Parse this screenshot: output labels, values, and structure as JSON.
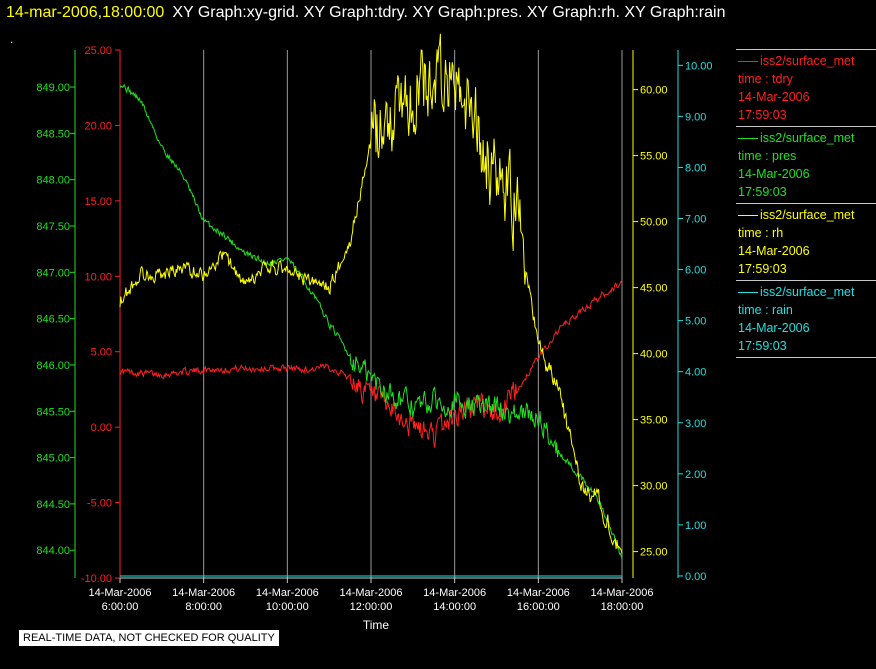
{
  "header": {
    "timestamp": "14-mar-2006,18:00:00",
    "title": "XY Graph:xy-grid.  XY Graph:tdry.  XY Graph:pres.  XY Graph:rh.  XY Graph:rain",
    "second_line": "."
  },
  "notice": "REAL-TIME DATA, NOT CHECKED FOR QUALITY",
  "legend": [
    {
      "source": "iss2/surface_met",
      "var": "time : tdry",
      "date": "14-Mar-2006",
      "time": "17:59:03",
      "color": "#ff2020"
    },
    {
      "source": "iss2/surface_met",
      "var": "time : pres",
      "date": "14-Mar-2006",
      "time": "17:59:03",
      "color": "#20e020"
    },
    {
      "source": "iss2/surface_met",
      "var": "time : rh",
      "date": "14-Mar-2006",
      "time": "17:59:03",
      "color": "#ffff00"
    },
    {
      "source": "iss2/surface_met",
      "var": "time : rain",
      "date": "14-Mar-2006",
      "time": "17:59:03",
      "color": "#20e0e0"
    }
  ],
  "chart_data": {
    "type": "line",
    "xlabel": "Time",
    "x_range": [
      "14-Mar-2006 6:00:00",
      "14-Mar-2006 18:00:00"
    ],
    "x_ticks": [
      {
        "date": "14-Mar-2006",
        "time": "6:00:00"
      },
      {
        "date": "14-Mar-2006",
        "time": "8:00:00"
      },
      {
        "date": "14-Mar-2006",
        "time": "10:00:00"
      },
      {
        "date": "14-Mar-2006",
        "time": "12:00:00"
      },
      {
        "date": "14-Mar-2006",
        "time": "14:00:00"
      },
      {
        "date": "14-Mar-2006",
        "time": "16:00:00"
      },
      {
        "date": "14-Mar-2006",
        "time": "18:00:00"
      }
    ],
    "grid": "vertical lines at x ticks",
    "axes": {
      "tdry": {
        "color": "#ff2020",
        "range": [
          -10,
          25
        ],
        "ticks": [
          "-10.00",
          "-5.00",
          "0.00",
          "5.00",
          "10.00",
          "15.00",
          "20.00",
          "25.00"
        ],
        "side": "left"
      },
      "pres": {
        "color": "#20e020",
        "range": [
          843.7,
          849.4
        ],
        "ticks": [
          "844.00",
          "844.50",
          "845.00",
          "845.50",
          "846.00",
          "846.50",
          "847.00",
          "847.50",
          "848.00",
          "848.50",
          "849.00"
        ],
        "side": "left"
      },
      "rh": {
        "color": "#ffff00",
        "range": [
          23.0,
          63.0
        ],
        "ticks": [
          "25.00",
          "30.00",
          "35.00",
          "40.00",
          "45.00",
          "50.00",
          "55.00",
          "60.00"
        ],
        "side": "right"
      },
      "rain": {
        "color": "#20e0e0",
        "range": [
          -0.04,
          10.3
        ],
        "ticks": [
          "0.00",
          "1.00",
          "2.00",
          "3.00",
          "4.00",
          "5.00",
          "6.00",
          "7.00",
          "8.00",
          "9.00",
          "10.00"
        ],
        "side": "right"
      }
    },
    "series": [
      {
        "key": "tdry",
        "x": [
          6,
          7,
          8,
          9,
          10,
          10.5,
          11,
          11.5,
          12,
          12.5,
          13,
          13.5,
          14,
          14.5,
          15,
          15.5,
          16,
          16.5,
          17,
          17.5,
          18
        ],
        "y": [
          3.7,
          3.5,
          3.8,
          3.9,
          3.9,
          3.8,
          4.0,
          3.3,
          2.0,
          1.0,
          0.0,
          -0.5,
          0.8,
          1.5,
          1.0,
          2.5,
          4.6,
          6.5,
          7.6,
          8.7,
          9.6
        ]
      },
      {
        "key": "pres",
        "x": [
          6,
          6.5,
          7,
          7.5,
          8,
          8.5,
          9,
          9.5,
          10,
          10.5,
          11,
          11.5,
          12,
          12.5,
          13,
          13.5,
          14,
          14.5,
          15,
          15.5,
          16,
          16.5,
          17,
          17.5,
          18
        ],
        "y": [
          849.05,
          848.85,
          848.35,
          848.05,
          847.55,
          847.4,
          847.2,
          847.1,
          847.15,
          846.85,
          846.45,
          846.1,
          845.85,
          845.7,
          845.55,
          845.6,
          845.6,
          845.55,
          845.55,
          845.45,
          845.45,
          845.05,
          844.8,
          844.5,
          843.9
        ]
      },
      {
        "key": "rh",
        "x": [
          6,
          6.5,
          7,
          7.5,
          8,
          8.5,
          9,
          9.5,
          10,
          10.5,
          11,
          11.5,
          12,
          12.5,
          13,
          13.5,
          14,
          14.5,
          15,
          15.5,
          16,
          16.5,
          17,
          17.5,
          18
        ],
        "y": [
          44.0,
          46.0,
          46.0,
          46.5,
          46.0,
          47.5,
          45.0,
          46.5,
          46.5,
          45.5,
          45.0,
          48.5,
          56.0,
          58.5,
          59.5,
          61.0,
          60.0,
          57.5,
          53.0,
          51.0,
          40.5,
          37.0,
          30.5,
          28.5,
          25.0
        ]
      },
      {
        "key": "rain",
        "x": [
          6,
          18
        ],
        "y": [
          0.0,
          0.0
        ]
      }
    ]
  }
}
